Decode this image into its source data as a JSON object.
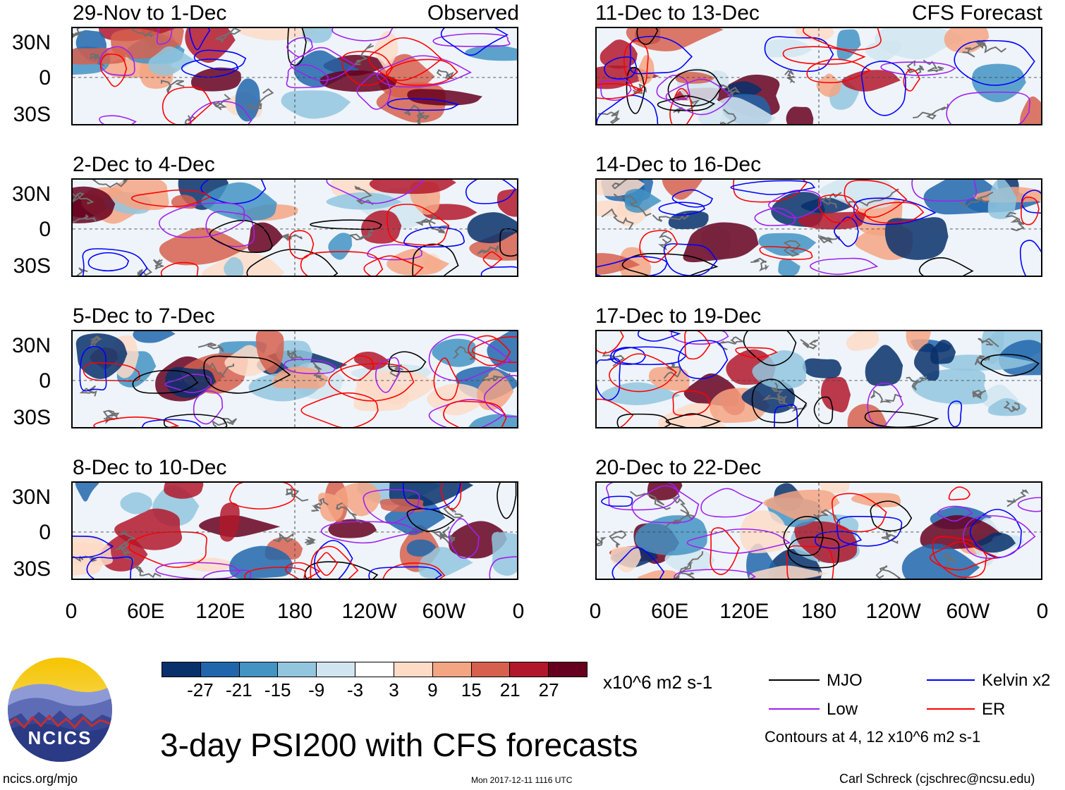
{
  "header": {
    "left_label": "Observed",
    "right_label": "CFS Forecast"
  },
  "panels_left": [
    {
      "title": "29-Nov to 1-Dec"
    },
    {
      "title": "2-Dec to 4-Dec"
    },
    {
      "title": "5-Dec to 7-Dec"
    },
    {
      "title": "8-Dec to 10-Dec"
    }
  ],
  "panels_right": [
    {
      "title": "11-Dec to 13-Dec"
    },
    {
      "title": "14-Dec to 16-Dec"
    },
    {
      "title": "17-Dec to 19-Dec"
    },
    {
      "title": "20-Dec to 22-Dec"
    }
  ],
  "lat_labels": [
    "30N",
    "0",
    "30S"
  ],
  "lon_labels": [
    "0",
    "60E",
    "120E",
    "180",
    "120W",
    "60W",
    "0"
  ],
  "colorbar": {
    "units": "x10^6 m2 s-1",
    "labels": [
      "-27",
      "-21",
      "-15",
      "-9",
      "-3",
      "3",
      "9",
      "15",
      "21",
      "27"
    ],
    "colors": [
      "#08306b",
      "#2166ac",
      "#4393c3",
      "#92c5de",
      "#d1e5f0",
      "#ffffff",
      "#fddbc7",
      "#f4a582",
      "#d6604d",
      "#b2182b",
      "#67001f"
    ]
  },
  "legend": {
    "items": [
      {
        "label": "MJO",
        "color": "#000000"
      },
      {
        "label": "Kelvin x2",
        "color": "#0000ff"
      },
      {
        "label": "Low",
        "color": "#a020f0"
      },
      {
        "label": "ER",
        "color": "#ff0000"
      }
    ],
    "contour_note": "Contours at 4, 12 x10^6 m2 s-1"
  },
  "logo": {
    "text": "NCICS"
  },
  "main_title": "3-day PSI200 with CFS forecasts",
  "footer": {
    "url": "ncics.org/mjo",
    "timestamp": "Mon 2017-12-11 1116 UTC",
    "credit": "Carl Schreck (cjschrec@ncsu.edu)"
  }
}
